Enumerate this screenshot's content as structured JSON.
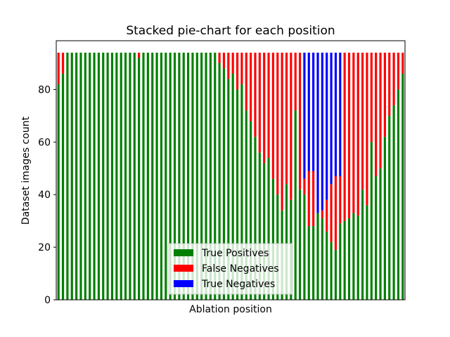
{
  "chart_data": {
    "type": "bar",
    "stacked": true,
    "title": "Stacked pie-chart for each position",
    "xlabel": "Ablation position",
    "ylabel": "Dataset images count",
    "ylim": [
      0,
      94
    ],
    "yticks": [
      0,
      20,
      40,
      60,
      80
    ],
    "grid": false,
    "legend_position": "lower-center",
    "colors": {
      "True Positives": "#008000",
      "False Negatives": "#ff0000",
      "True Negatives": "#0000ff"
    },
    "series": [
      {
        "name": "True Positives",
        "values": [
          82,
          86,
          94,
          94,
          94,
          94,
          94,
          94,
          94,
          94,
          94,
          94,
          94,
          94,
          94,
          94,
          94,
          94,
          92,
          94,
          94,
          94,
          94,
          94,
          94,
          94,
          94,
          94,
          94,
          94,
          94,
          94,
          94,
          94,
          94,
          94,
          90,
          88,
          84,
          86,
          80,
          82,
          72,
          68,
          62,
          56,
          52,
          54,
          46,
          40,
          34,
          44,
          38,
          72,
          42,
          40,
          28,
          28,
          33,
          31,
          26,
          22,
          19,
          29,
          30,
          31,
          33,
          32,
          42,
          36,
          60,
          47,
          50,
          62,
          70,
          74,
          80,
          86
        ]
      },
      {
        "name": "False Negatives",
        "values": [
          12,
          8,
          0,
          0,
          0,
          0,
          0,
          0,
          0,
          0,
          0,
          0,
          0,
          0,
          0,
          0,
          0,
          0,
          2,
          0,
          0,
          0,
          0,
          0,
          0,
          0,
          0,
          0,
          0,
          0,
          0,
          0,
          0,
          0,
          0,
          0,
          4,
          6,
          10,
          8,
          14,
          12,
          22,
          26,
          32,
          38,
          42,
          40,
          48,
          54,
          60,
          50,
          56,
          22,
          52,
          6,
          21,
          21,
          0,
          3,
          12,
          22,
          28,
          18,
          64,
          63,
          61,
          62,
          52,
          58,
          34,
          47,
          44,
          32,
          24,
          20,
          14,
          8
        ]
      },
      {
        "name": "True Negatives",
        "values": [
          0,
          0,
          0,
          0,
          0,
          0,
          0,
          0,
          0,
          0,
          0,
          0,
          0,
          0,
          0,
          0,
          0,
          0,
          0,
          0,
          0,
          0,
          0,
          0,
          0,
          0,
          0,
          0,
          0,
          0,
          0,
          0,
          0,
          0,
          0,
          0,
          0,
          0,
          0,
          0,
          0,
          0,
          0,
          0,
          0,
          0,
          0,
          0,
          0,
          0,
          0,
          0,
          0,
          0,
          0,
          48,
          45,
          45,
          61,
          60,
          56,
          50,
          47,
          47,
          0,
          0,
          0,
          0,
          0,
          0,
          0,
          0,
          0,
          0,
          0,
          0,
          0,
          0
        ]
      }
    ]
  }
}
